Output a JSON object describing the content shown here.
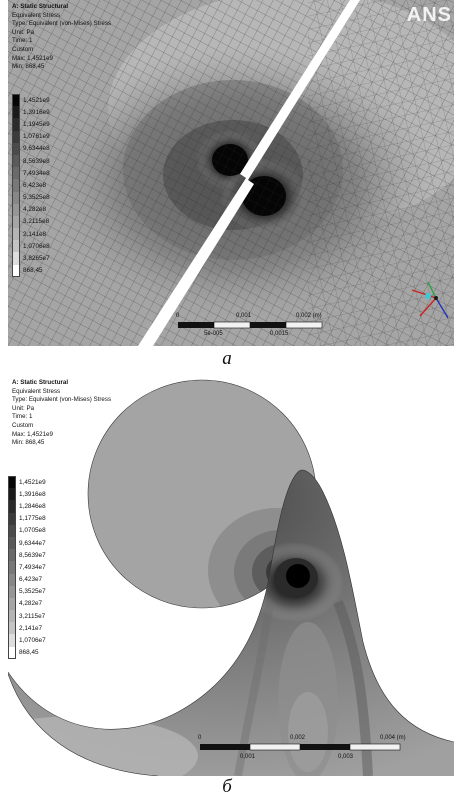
{
  "panel_a": {
    "caption": "a",
    "logo": "ANS",
    "info": [
      "A: Static Structural",
      "Equivalent Stress",
      "Type: Equivalent (von-Mises) Stress",
      "Unit: Pa",
      "Time: 1",
      "Custom",
      "Max: 1,4521e9",
      "Min: 868,45"
    ],
    "legend": [
      "1,4521e9",
      "1,3916e9",
      "1,1945e9",
      "1,0761e9",
      "9,6344e8",
      "8,5639e8",
      "7,4934e8",
      "6,423e8",
      "5,3525e8",
      "4,282e8",
      "3,2115e8",
      "2,141e8",
      "1,0706e8",
      "3,8265e7",
      "868,45"
    ],
    "scale_top": [
      "0",
      "0,001",
      "0,002 (m)"
    ],
    "scale_bottom": [
      "5e-005",
      "0,0015"
    ]
  },
  "panel_b": {
    "caption": "б",
    "info": [
      "A: Static Structural",
      "Equivalent Stress",
      "Type: Equivalent (von-Mises) Stress",
      "Unit: Pa",
      "Time: 1",
      "Custom",
      "Max: 1,4521e9",
      "Min: 868,45"
    ],
    "legend": [
      "1,4521e9",
      "1,3916e8",
      "1,2846e8",
      "1,1775e8",
      "1,0705e8",
      "9,6344e7",
      "8,5639e7",
      "7,4934e7",
      "6,423e7",
      "5,3525e7",
      "4,282e7",
      "3,2115e7",
      "2,141e7",
      "1,0706e7",
      "868,45"
    ],
    "scale_top": [
      "0",
      "0,002",
      "0,004 (m)"
    ],
    "scale_bottom": [
      "0,001",
      "0,003"
    ]
  },
  "legend_colors": [
    "#050505",
    "#1a1a1a",
    "#2b2b2b",
    "#3b3b3b",
    "#4b4b4b",
    "#5a5a5a",
    "#6a6a6a",
    "#787878",
    "#878787",
    "#969696",
    "#a5a5a5",
    "#b4b4b4",
    "#c4c4c4",
    "#dddddd",
    "#ffffff"
  ]
}
